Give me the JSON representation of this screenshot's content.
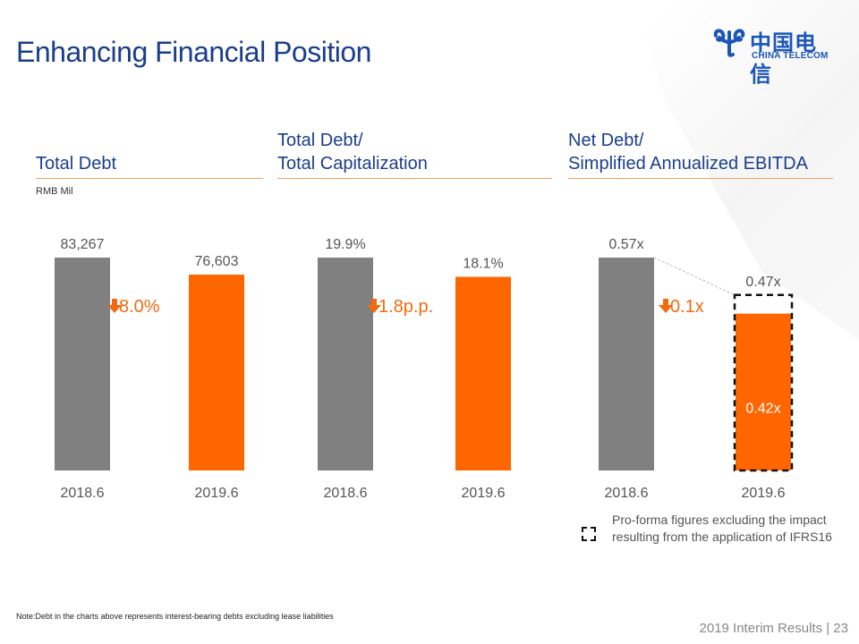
{
  "page": {
    "title": "Enhancing Financial Position",
    "logo": {
      "chinese": "中国电信",
      "english": "CHINA TELECOM"
    },
    "unit": "RMB Mil",
    "note": "Note:Debt in the charts above represents interest-bearing debts excluding lease liabilities",
    "footer": "2019 Interim Results | 23",
    "legend": "Pro-forma figures excluding the impact resulting from the application of IFRS16",
    "colors": {
      "gray_bar": "#808080",
      "orange_bar": "#ff6600",
      "title_blue": "#1a3e8c",
      "change_orange": "#f26a10"
    }
  },
  "panels": [
    {
      "title_lines": [
        "Total Debt"
      ]
    },
    {
      "title_lines": [
        "Total Debt/",
        "Total Capitalization"
      ]
    },
    {
      "title_lines": [
        "Net Debt/",
        "Simplified Annualized EBITDA"
      ]
    }
  ],
  "chart_data": [
    {
      "type": "bar",
      "title": "Total Debt",
      "ylabel": "RMB Mil",
      "categories": [
        "2018.6",
        "2019.6"
      ],
      "values": [
        83267,
        76603
      ],
      "labels": [
        "83,267",
        "76,603"
      ],
      "change": "8.0%",
      "change_direction": "down",
      "ylim": [
        0,
        83267
      ]
    },
    {
      "type": "bar",
      "title": "Total Debt/Total Capitalization",
      "categories": [
        "2018.6",
        "2019.6"
      ],
      "values": [
        19.9,
        18.1
      ],
      "labels": [
        "19.9%",
        "18.1%"
      ],
      "change": "1.8p.p.",
      "change_direction": "down",
      "ylim": [
        0,
        19.9
      ]
    },
    {
      "type": "bar",
      "title": "Net Debt/Simplified Annualized EBITDA",
      "categories": [
        "2018.6",
        "2019.6"
      ],
      "values": [
        0.57,
        0.42
      ],
      "labels": [
        "0.57x",
        "0.42x"
      ],
      "proforma": {
        "category": "2019.6",
        "value": 0.47,
        "label": "0.47x"
      },
      "change": "0.1x",
      "change_direction": "down",
      "ylim": [
        0,
        0.57
      ]
    }
  ]
}
